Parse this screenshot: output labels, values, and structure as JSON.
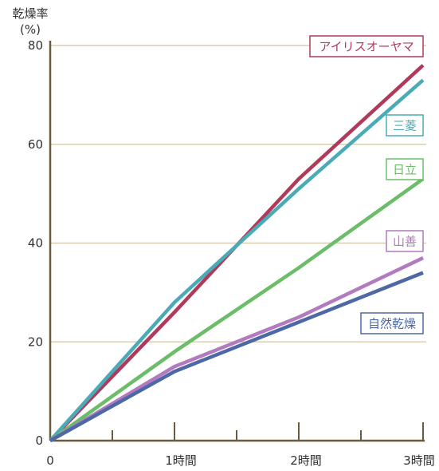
{
  "chart_data": {
    "type": "line",
    "ylabel_line1": "乾燥率",
    "ylabel_line2": "(%)",
    "x": [
      0,
      1,
      2,
      3
    ],
    "x_tick_labels": [
      "0",
      "1時間",
      "2時間",
      "3時間"
    ],
    "y_ticks": [
      0,
      20,
      40,
      60,
      80
    ],
    "y_tick_labels": [
      "0",
      "20",
      "40",
      "60",
      "80"
    ],
    "xlim": [
      0,
      3
    ],
    "ylim": [
      0,
      80
    ],
    "grid": true,
    "series": [
      {
        "name": "アイリスオーヤマ",
        "values": [
          0,
          26,
          53,
          76
        ],
        "color": "#b03a5a"
      },
      {
        "name": "三菱",
        "values": [
          0,
          28,
          51,
          73
        ],
        "color": "#4aaab8"
      },
      {
        "name": "日立",
        "values": [
          0,
          18,
          35,
          53
        ],
        "color": "#6bbd6a"
      },
      {
        "name": "山善",
        "values": [
          0,
          15,
          25,
          37
        ],
        "color": "#b27abf"
      },
      {
        "name": "自然乾燥",
        "values": [
          0,
          14,
          24,
          34
        ],
        "color": "#4e68a6"
      }
    ],
    "axis_color": "#6b5a3c",
    "grid_color": "#d8cdb0"
  }
}
